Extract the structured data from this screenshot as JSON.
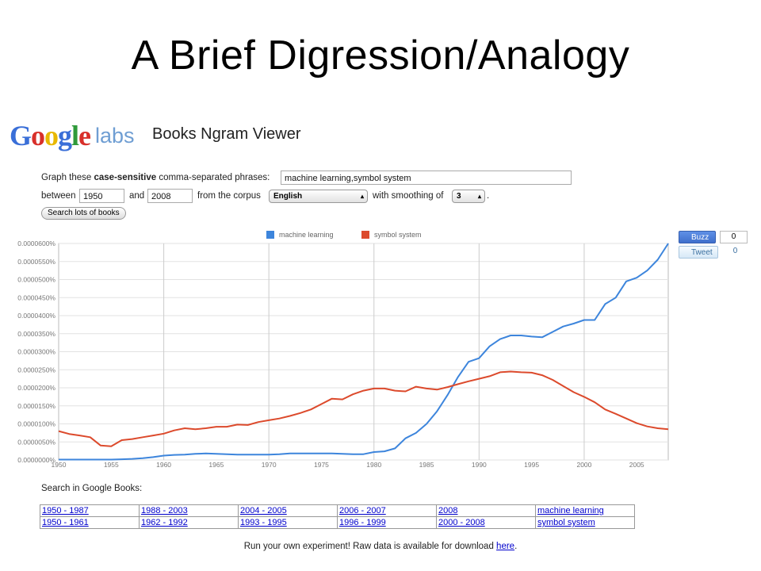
{
  "slide": {
    "title": "A Brief Digression/Analogy"
  },
  "logo": {
    "google": "Google",
    "labs": "labs"
  },
  "app": {
    "title": "Books Ngram Viewer"
  },
  "form": {
    "graph_prefix": "Graph these ",
    "graph_bold": "case-sensitive",
    "graph_suffix": " comma-separated phrases:",
    "phrases_value": "machine learning,symbol system",
    "between_label": "between",
    "start_year": "1950",
    "and_label": "and",
    "end_year": "2008",
    "corpus_label": "from the corpus",
    "corpus_value": "English",
    "smoothing_label": "with smoothing of",
    "smoothing_value": "3",
    "period": ".",
    "search_button": "Search lots of books"
  },
  "share": {
    "buzz_label": "Buzz",
    "buzz_count": "0",
    "tweet_label": "Tweet",
    "tweet_count": "0"
  },
  "chart_data": {
    "type": "line",
    "title": "",
    "xlabel": "",
    "ylabel": "",
    "xlim": [
      1950,
      2008
    ],
    "ylim": [
      0,
      6e-07
    ],
    "grid": true,
    "legend_position": "top-center",
    "x_ticks": [
      1950,
      1955,
      1960,
      1965,
      1970,
      1975,
      1980,
      1985,
      1990,
      1995,
      2000,
      2005
    ],
    "x_tick_labels": [
      "1950",
      "1955",
      "1960",
      "1965",
      "1970",
      "1975",
      "1980",
      "1985",
      "1990",
      "1995",
      "2000",
      "2005"
    ],
    "y_ticks": [
      0.0,
      5e-08,
      1e-07,
      1.5e-07,
      2e-07,
      2.5e-07,
      3e-07,
      3.5e-07,
      4e-07,
      4.5e-07,
      5e-07,
      5.5e-07,
      6e-07
    ],
    "y_tick_labels": [
      "0.0000000%",
      "0.0000050%",
      "0.0000100%",
      "0.0000150%",
      "0.0000200%",
      "0.0000250%",
      "0.0000300%",
      "0.0000350%",
      "0.0000400%",
      "0.0000450%",
      "0.0000500%",
      "0.0000550%",
      "0.0000600%"
    ],
    "x": [
      1950,
      1951,
      1952,
      1953,
      1954,
      1955,
      1956,
      1957,
      1958,
      1959,
      1960,
      1961,
      1962,
      1963,
      1964,
      1965,
      1966,
      1967,
      1968,
      1969,
      1970,
      1971,
      1972,
      1973,
      1974,
      1975,
      1976,
      1977,
      1978,
      1979,
      1980,
      1981,
      1982,
      1983,
      1984,
      1985,
      1986,
      1987,
      1988,
      1989,
      1990,
      1991,
      1992,
      1993,
      1994,
      1995,
      1996,
      1997,
      1998,
      1999,
      2000,
      2001,
      2002,
      2003,
      2004,
      2005,
      2006,
      2007,
      2008
    ],
    "series": [
      {
        "name": "machine learning",
        "color": "#3d85dc",
        "values": [
          1e-09,
          1e-09,
          1e-09,
          1e-09,
          1e-09,
          1e-09,
          2e-09,
          3e-09,
          5e-09,
          8e-09,
          1.2e-08,
          1.4e-08,
          1.5e-08,
          1.7e-08,
          1.8e-08,
          1.7e-08,
          1.6e-08,
          1.5e-08,
          1.5e-08,
          1.5e-08,
          1.5e-08,
          1.6e-08,
          1.8e-08,
          1.8e-08,
          1.8e-08,
          1.8e-08,
          1.8e-08,
          1.7e-08,
          1.6e-08,
          1.6e-08,
          2.2e-08,
          2.4e-08,
          3.2e-08,
          6e-08,
          7.5e-08,
          1e-07,
          1.35e-07,
          1.8e-07,
          2.3e-07,
          2.72e-07,
          2.82e-07,
          3.15e-07,
          3.35e-07,
          3.45e-07,
          3.45e-07,
          3.42e-07,
          3.4e-07,
          3.55e-07,
          3.7e-07,
          3.78e-07,
          3.88e-07,
          3.88e-07,
          4.32e-07,
          4.5e-07,
          4.95e-07,
          5.05e-07,
          5.25e-07,
          5.55e-07,
          6e-07
        ]
      },
      {
        "name": "symbol system",
        "color": "#dc4a2c",
        "values": [
          8e-08,
          7.2e-08,
          6.8e-08,
          6.3e-08,
          4e-08,
          3.8e-08,
          5.5e-08,
          5.8e-08,
          6.3e-08,
          6.8e-08,
          7.3e-08,
          8.2e-08,
          8.8e-08,
          8.5e-08,
          8.8e-08,
          9.2e-08,
          9.2e-08,
          9.8e-08,
          9.7e-08,
          1.05e-07,
          1.1e-07,
          1.15e-07,
          1.22e-07,
          1.3e-07,
          1.4e-07,
          1.55e-07,
          1.7e-07,
          1.68e-07,
          1.82e-07,
          1.92e-07,
          1.98e-07,
          1.98e-07,
          1.92e-07,
          1.9e-07,
          2.03e-07,
          1.98e-07,
          1.95e-07,
          2.02e-07,
          2.1e-07,
          2.18e-07,
          2.25e-07,
          2.32e-07,
          2.43e-07,
          2.45e-07,
          2.43e-07,
          2.42e-07,
          2.35e-07,
          2.22e-07,
          2.05e-07,
          1.88e-07,
          1.75e-07,
          1.6e-07,
          1.4e-07,
          1.28e-07,
          1.15e-07,
          1.02e-07,
          9.3e-08,
          8.8e-08,
          8.5e-08
        ]
      }
    ]
  },
  "search_in_books": {
    "label": "Search in Google Books:",
    "rows": [
      [
        "1950 - 1987",
        "1988 - 2003",
        "2004 - 2005",
        "2006 - 2007",
        "2008",
        "machine learning"
      ],
      [
        "1950 - 1961",
        "1962 - 1992",
        "1993 - 1995",
        "1996 - 1999",
        "2000 - 2008",
        "symbol system"
      ]
    ]
  },
  "footer": {
    "text": "Run your own experiment! Raw data is available for download ",
    "link": "here",
    "period": "."
  }
}
